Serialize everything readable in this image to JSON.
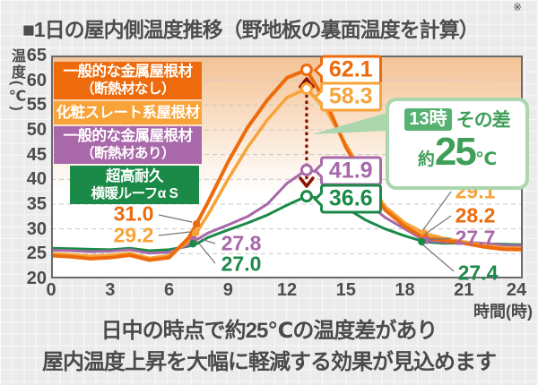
{
  "title": "■1日の屋内側温度推移（野地板の裏面温度を計算）",
  "footnote_mark": "※",
  "y_axis": {
    "label": "温度(℃)"
  },
  "x_axis": {
    "label": "時間(時)"
  },
  "legend": [
    {
      "label": "一般的な金属屋根材",
      "sublabel": "（断熱材なし）",
      "color": "#ed6b0c"
    },
    {
      "label": "化粧スレート系屋根材",
      "sublabel": "",
      "color": "#f7a338"
    },
    {
      "label": "一般的な金属屋根材",
      "sublabel": "（断熱材あり）",
      "color": "#a868a9"
    },
    {
      "label": "超高耐久",
      "sublabel": "横暖ルーフα S",
      "color": "#1b8a48"
    }
  ],
  "callout": {
    "badge": "13時",
    "label": "その差",
    "prefix": "約",
    "value": "25",
    "unit": "℃",
    "text_color": "#3f9f58",
    "badge_bg": "#56b173",
    "border_color": "#abd6ae"
  },
  "caption": {
    "line1": "日中の時点で約25℃の温度差があり",
    "line2": "屋内温度上昇を大幅に軽減する効果が見込めます"
  },
  "chart_data": {
    "type": "line",
    "title": "1日の屋内側温度推移（野地板の裏面温度を計算）",
    "xlabel": "時間(時)",
    "ylabel": "温度(℃)",
    "xlim": [
      0,
      24
    ],
    "ylim": [
      20,
      65
    ],
    "x_ticks": [
      0,
      3,
      6,
      9,
      12,
      15,
      18,
      21,
      24
    ],
    "y_ticks": [
      20,
      25,
      30,
      35,
      40,
      45,
      50,
      55,
      60,
      65
    ],
    "grid": "horizontal-dashed",
    "legend_position": "top-left",
    "diff_arrow": {
      "hour": 13,
      "from": 62.1,
      "to": 36.6,
      "color": "#8e1500",
      "note": "13時 その差 約25℃"
    },
    "series": [
      {
        "name": "一般的な金属屋根材（断熱材なし）",
        "color": "#ed6b0c",
        "points": [
          [
            0,
            24.6
          ],
          [
            1,
            24.4
          ],
          [
            2,
            24.0
          ],
          [
            3,
            24.2
          ],
          [
            4,
            24.7
          ],
          [
            5,
            23.7
          ],
          [
            6,
            24.2
          ],
          [
            7,
            28.2
          ],
          [
            7.4,
            31.0
          ],
          [
            8,
            35.5
          ],
          [
            9,
            43.5
          ],
          [
            10,
            50.5
          ],
          [
            11,
            56.0
          ],
          [
            12,
            60.5
          ],
          [
            13,
            62.1
          ],
          [
            14,
            55.5
          ],
          [
            15,
            46.5
          ],
          [
            16,
            39.5
          ],
          [
            17,
            33.8
          ],
          [
            18,
            30.5
          ],
          [
            19,
            28.2
          ],
          [
            20,
            27.7
          ],
          [
            21,
            27.1
          ],
          [
            22,
            26.4
          ],
          [
            23,
            25.9
          ],
          [
            24,
            25.8
          ]
        ]
      },
      {
        "name": "化粧スレート系屋根材",
        "color": "#f7a338",
        "points": [
          [
            0,
            25.0
          ],
          [
            1,
            24.8
          ],
          [
            2,
            24.5
          ],
          [
            3,
            24.7
          ],
          [
            4,
            25.1
          ],
          [
            5,
            24.1
          ],
          [
            6,
            24.6
          ],
          [
            7,
            27.5
          ],
          [
            7.4,
            29.2
          ],
          [
            8,
            33.0
          ],
          [
            9,
            40.0
          ],
          [
            10,
            46.5
          ],
          [
            11,
            52.0
          ],
          [
            12,
            56.5
          ],
          [
            13,
            58.3
          ],
          [
            14,
            54.0
          ],
          [
            15,
            47.0
          ],
          [
            16,
            40.5
          ],
          [
            17,
            34.5
          ],
          [
            18,
            31.2
          ],
          [
            19,
            29.1
          ],
          [
            20,
            28.1
          ],
          [
            21,
            27.4
          ],
          [
            22,
            26.7
          ],
          [
            23,
            26.2
          ],
          [
            24,
            26.1
          ]
        ]
      },
      {
        "name": "一般的な金属屋根材（断熱材あり）",
        "color": "#a868a9",
        "points": [
          [
            0,
            25.7
          ],
          [
            1,
            25.6
          ],
          [
            2,
            25.4
          ],
          [
            3,
            25.5
          ],
          [
            4,
            25.8
          ],
          [
            5,
            25.1
          ],
          [
            6,
            25.3
          ],
          [
            7,
            26.8
          ],
          [
            7.4,
            27.8
          ],
          [
            8,
            29.2
          ],
          [
            9,
            30.8
          ],
          [
            10,
            32.5
          ],
          [
            11,
            35.0
          ],
          [
            12,
            39.2
          ],
          [
            13,
            41.9
          ],
          [
            14,
            41.2
          ],
          [
            15,
            38.8
          ],
          [
            16,
            35.5
          ],
          [
            17,
            32.3
          ],
          [
            18,
            30.0
          ],
          [
            19,
            27.7
          ],
          [
            20,
            27.3
          ],
          [
            21,
            27.4
          ],
          [
            22,
            27.1
          ],
          [
            23,
            26.7
          ],
          [
            24,
            26.6
          ]
        ]
      },
      {
        "name": "超高耐久 横暖ルーフα S",
        "color": "#1b8a48",
        "points": [
          [
            0,
            26.1
          ],
          [
            1,
            26.0
          ],
          [
            2,
            25.9
          ],
          [
            3,
            25.8
          ],
          [
            4,
            26.1
          ],
          [
            5,
            25.6
          ],
          [
            6,
            25.8
          ],
          [
            7,
            26.5
          ],
          [
            7.4,
            27.0
          ],
          [
            8,
            28.3
          ],
          [
            9,
            29.8
          ],
          [
            10,
            31.2
          ],
          [
            11,
            32.8
          ],
          [
            12,
            34.8
          ],
          [
            13,
            36.6
          ],
          [
            14,
            36.0
          ],
          [
            15,
            34.2
          ],
          [
            16,
            31.8
          ],
          [
            17,
            30.0
          ],
          [
            18,
            28.6
          ],
          [
            19,
            27.4
          ],
          [
            20,
            27.1
          ],
          [
            21,
            27.2
          ],
          [
            22,
            27.0
          ],
          [
            23,
            26.9
          ],
          [
            24,
            26.8
          ]
        ]
      }
    ],
    "annotations": [
      {
        "series": 0,
        "hour": 13,
        "value": "62.1",
        "style": "bubble"
      },
      {
        "series": 1,
        "hour": 13,
        "value": "58.3",
        "style": "bubble"
      },
      {
        "series": 2,
        "hour": 13,
        "value": "41.9",
        "style": "bubble"
      },
      {
        "series": 3,
        "hour": 13,
        "value": "36.6",
        "style": "bubble"
      },
      {
        "series": 0,
        "hour": 7.4,
        "value": "31.0",
        "style": "text"
      },
      {
        "series": 1,
        "hour": 7.4,
        "value": "29.2",
        "style": "text"
      },
      {
        "series": 2,
        "hour": 7.4,
        "value": "27.8",
        "style": "text"
      },
      {
        "series": 3,
        "hour": 7.4,
        "value": "27.0",
        "style": "text"
      },
      {
        "series": 1,
        "hour": 19,
        "value": "29.1",
        "style": "text"
      },
      {
        "series": 0,
        "hour": 19,
        "value": "28.2",
        "style": "text"
      },
      {
        "series": 2,
        "hour": 19,
        "value": "27.7",
        "style": "text"
      },
      {
        "series": 3,
        "hour": 19,
        "value": "27.4",
        "style": "text"
      }
    ]
  }
}
